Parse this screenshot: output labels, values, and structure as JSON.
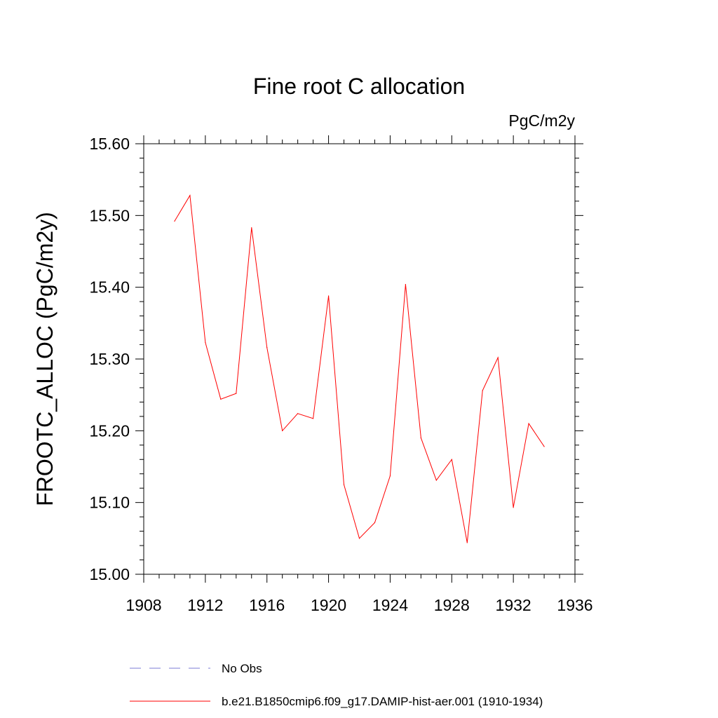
{
  "chart_data": {
    "type": "line",
    "title": "Fine root C allocation",
    "units_label": "PgC/m2y",
    "ylabel": "FROOTC_ALLOC  (PgC/m2y)",
    "xlabel": "",
    "xlim": [
      1908,
      1936
    ],
    "ylim": [
      15.0,
      15.6
    ],
    "x_ticks": [
      1908,
      1912,
      1916,
      1920,
      1924,
      1928,
      1932,
      1936
    ],
    "y_ticks": [
      "15.00",
      "15.10",
      "15.20",
      "15.30",
      "15.40",
      "15.50",
      "15.60"
    ],
    "x_tick_labels": [
      "1908",
      "1912",
      "1916",
      "1920",
      "1924",
      "1928",
      "1932",
      "1936"
    ],
    "grid": false,
    "legend_position": "bottom",
    "series": [
      {
        "name": "b.e21.B1850cmip6.f09_g17.DAMIP-hist-aer.001 (1910-1934)",
        "color": "#ff0000",
        "style": "solid",
        "x": [
          1910,
          1911,
          1912,
          1913,
          1914,
          1915,
          1916,
          1917,
          1918,
          1919,
          1920,
          1921,
          1922,
          1923,
          1924,
          1925,
          1926,
          1927,
          1928,
          1929,
          1930,
          1931,
          1932,
          1933,
          1934
        ],
        "y": [
          15.492,
          15.528,
          15.323,
          15.244,
          15.252,
          15.483,
          15.316,
          15.2,
          15.224,
          15.217,
          15.388,
          15.125,
          15.05,
          15.072,
          15.137,
          15.404,
          15.19,
          15.131,
          15.16,
          15.044,
          15.256,
          15.302,
          15.093,
          15.21,
          15.178
        ]
      }
    ],
    "legend": [
      {
        "label": "No Obs",
        "color": "#7b7bd6",
        "style": "dashed"
      },
      {
        "label": "b.e21.B1850cmip6.f09_g17.DAMIP-hist-aer.001 (1910-1934)",
        "color": "#ff0000",
        "style": "solid"
      }
    ]
  }
}
